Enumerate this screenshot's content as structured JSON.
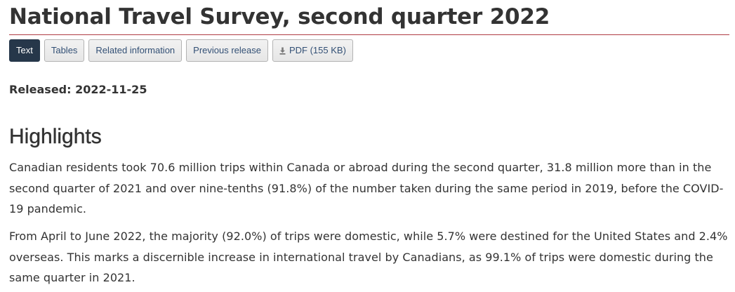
{
  "title": "National Travel Survey, second quarter 2022",
  "tabs": [
    {
      "label": "Text",
      "active": true
    },
    {
      "label": "Tables",
      "active": false
    },
    {
      "label": "Related information",
      "active": false
    },
    {
      "label": "Previous release",
      "active": false
    },
    {
      "label": "PDF (155 KB)",
      "active": false,
      "icon": "pdf-download-icon"
    }
  ],
  "released": "Released: 2022-11-25",
  "highlights": {
    "heading": "Highlights",
    "paragraphs": [
      "Canadian residents took 70.6 million trips within Canada or abroad during the second quarter, 31.8 million more than in the second quarter of 2021 and over nine-tenths (91.8%) of the number taken during the same period in 2019, before the COVID-19 pandemic.",
      "From April to June 2022, the majority (92.0%) of trips were domestic, while 5.7% were destined for the United States and 2.4% overseas. This marks a discernible increase in international travel by Canadians, as 99.1% of trips were domestic during the same quarter in 2021."
    ]
  },
  "colors": {
    "title_rule": "#af3c43",
    "active_tab": "#26374a",
    "tab_text": "#335075",
    "body_text": "#333333"
  }
}
